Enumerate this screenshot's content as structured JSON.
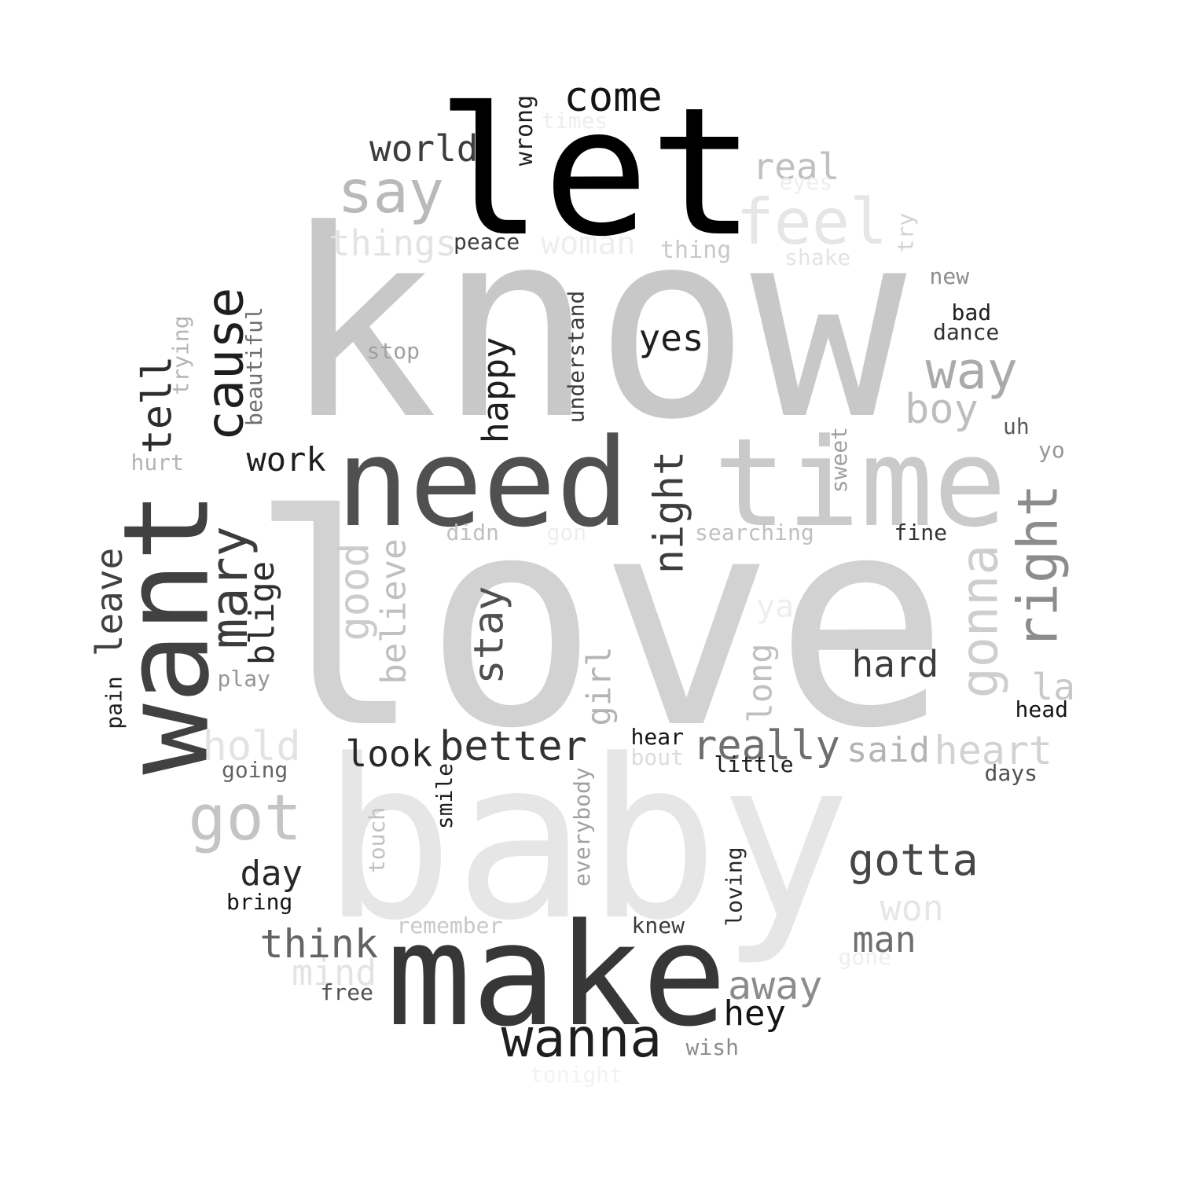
{
  "words": [
    {
      "text": "love",
      "color": "#d2d2d2",
      "rotate": false
    },
    {
      "text": "know",
      "color": "#c8c8c8",
      "rotate": false
    },
    {
      "text": "baby",
      "color": "#e6e6e6",
      "rotate": false
    },
    {
      "text": "let",
      "color": "#000000",
      "rotate": false
    },
    {
      "text": "make",
      "color": "#373737",
      "rotate": false
    },
    {
      "text": "need",
      "color": "#505050",
      "rotate": false
    },
    {
      "text": "time",
      "color": "#cacaca",
      "rotate": false
    },
    {
      "text": "want",
      "color": "#414141",
      "rotate": true
    },
    {
      "text": "say",
      "color": "#b9b9b9",
      "rotate": false
    },
    {
      "text": "feel",
      "color": "#e6e6e6",
      "rotate": false
    },
    {
      "text": "cause",
      "color": "#1e1e1e",
      "rotate": true
    },
    {
      "text": "come",
      "color": "#141414",
      "rotate": false
    },
    {
      "text": "world",
      "color": "#3c3c3c",
      "rotate": false
    },
    {
      "text": "real",
      "color": "#c0c0c0",
      "rotate": false
    },
    {
      "text": "wrong",
      "color": "#1e1e1e",
      "rotate": true
    },
    {
      "text": "times",
      "color": "#eeeeee",
      "rotate": false
    },
    {
      "text": "eyes",
      "color": "#eeeeee",
      "rotate": false
    },
    {
      "text": "things",
      "color": "#e3e3e3",
      "rotate": false
    },
    {
      "text": "peace",
      "color": "#3c3c3c",
      "rotate": false
    },
    {
      "text": "woman",
      "color": "#eeeeee",
      "rotate": false
    },
    {
      "text": "thing",
      "color": "#c8c8c8",
      "rotate": false
    },
    {
      "text": "shake",
      "color": "#e3e3e3",
      "rotate": false
    },
    {
      "text": "try",
      "color": "#d2d2d2",
      "rotate": true
    },
    {
      "text": "new",
      "color": "#8c8c8c",
      "rotate": false
    },
    {
      "text": "bad",
      "color": "#1e1e1e",
      "rotate": false
    },
    {
      "text": "dance",
      "color": "#323232",
      "rotate": false
    },
    {
      "text": "way",
      "color": "#aaaaaa",
      "rotate": false
    },
    {
      "text": "boy",
      "color": "#bebebe",
      "rotate": false
    },
    {
      "text": "yes",
      "color": "#1e1e1e",
      "rotate": false
    },
    {
      "text": "stop",
      "color": "#a0a0a0",
      "rotate": false
    },
    {
      "text": "happy",
      "color": "#1e1e1e",
      "rotate": true
    },
    {
      "text": "understand",
      "color": "#3c3c3c",
      "rotate": true
    },
    {
      "text": "trying",
      "color": "#b4b4b4",
      "rotate": true
    },
    {
      "text": "beautiful",
      "color": "#6e6e6e",
      "rotate": true
    },
    {
      "text": "tell",
      "color": "#2d2d2d",
      "rotate": true
    },
    {
      "text": "hurt",
      "color": "#b4b4b4",
      "rotate": false
    },
    {
      "text": "work",
      "color": "#1e1e1e",
      "rotate": false
    },
    {
      "text": "sweet",
      "color": "#a0a0a0",
      "rotate": true
    },
    {
      "text": "uh",
      "color": "#5a5a5a",
      "rotate": false
    },
    {
      "text": "yo",
      "color": "#969696",
      "rotate": false
    },
    {
      "text": "right",
      "color": "#8c8c8c",
      "rotate": true
    },
    {
      "text": "gonna",
      "color": "#cecece",
      "rotate": true
    },
    {
      "text": "night",
      "color": "#3c3c3c",
      "rotate": true
    },
    {
      "text": "mary",
      "color": "#3c3c3c",
      "rotate": true
    },
    {
      "text": "blige",
      "color": "#2d2d2d",
      "rotate": true
    },
    {
      "text": "leave",
      "color": "#414141",
      "rotate": true
    },
    {
      "text": "pain",
      "color": "#1e1e1e",
      "rotate": true
    },
    {
      "text": "good",
      "color": "#cccccc",
      "rotate": true
    },
    {
      "text": "believe",
      "color": "#c0c0c0",
      "rotate": true
    },
    {
      "text": "didn",
      "color": "#c0c0c0",
      "rotate": false
    },
    {
      "text": "gon",
      "color": "#eeeeee",
      "rotate": false
    },
    {
      "text": "searching",
      "color": "#c0c0c0",
      "rotate": false
    },
    {
      "text": "fine",
      "color": "#323232",
      "rotate": false
    },
    {
      "text": "stay",
      "color": "#505050",
      "rotate": true
    },
    {
      "text": "ya",
      "color": "#eeeeee",
      "rotate": false
    },
    {
      "text": "long",
      "color": "#c0c0c0",
      "rotate": true
    },
    {
      "text": "girl",
      "color": "#b4b4b4",
      "rotate": true
    },
    {
      "text": "la",
      "color": "#c8c8c8",
      "rotate": false
    },
    {
      "text": "head",
      "color": "#141414",
      "rotate": false
    },
    {
      "text": "hard",
      "color": "#3c3c3c",
      "rotate": false
    },
    {
      "text": "play",
      "color": "#969696",
      "rotate": false
    },
    {
      "text": "hold",
      "color": "#e3e3e3",
      "rotate": false
    },
    {
      "text": "going",
      "color": "#646464",
      "rotate": false
    },
    {
      "text": "look",
      "color": "#282828",
      "rotate": false
    },
    {
      "text": "better",
      "color": "#323232",
      "rotate": false
    },
    {
      "text": "hear",
      "color": "#141414",
      "rotate": false
    },
    {
      "text": "bout",
      "color": "#dcdcdc",
      "rotate": false
    },
    {
      "text": "really",
      "color": "#6e6e6e",
      "rotate": false
    },
    {
      "text": "little",
      "color": "#1e1e1e",
      "rotate": false
    },
    {
      "text": "said",
      "color": "#b4b4b4",
      "rotate": false
    },
    {
      "text": "heart",
      "color": "#d2d2d2",
      "rotate": false
    },
    {
      "text": "days",
      "color": "#505050",
      "rotate": false
    },
    {
      "text": "got",
      "color": "#c4c4c4",
      "rotate": false
    },
    {
      "text": "smile",
      "color": "#1e1e1e",
      "rotate": true
    },
    {
      "text": "touch",
      "color": "#c0c0c0",
      "rotate": true
    },
    {
      "text": "everybody",
      "color": "#a0a0a0",
      "rotate": true
    },
    {
      "text": "day",
      "color": "#282828",
      "rotate": false
    },
    {
      "text": "bring",
      "color": "#141414",
      "rotate": false
    },
    {
      "text": "gotta",
      "color": "#464646",
      "rotate": false
    },
    {
      "text": "loving",
      "color": "#282828",
      "rotate": true
    },
    {
      "text": "remember",
      "color": "#c8c8c8",
      "rotate": false
    },
    {
      "text": "knew",
      "color": "#3c3c3c",
      "rotate": false
    },
    {
      "text": "won",
      "color": "#e6e6e6",
      "rotate": false
    },
    {
      "text": "man",
      "color": "#6e6e6e",
      "rotate": false
    },
    {
      "text": "gone",
      "color": "#eeeeee",
      "rotate": false
    },
    {
      "text": "think",
      "color": "#646464",
      "rotate": false
    },
    {
      "text": "mind",
      "color": "#e3e3e3",
      "rotate": false
    },
    {
      "text": "free",
      "color": "#505050",
      "rotate": false
    },
    {
      "text": "away",
      "color": "#8c8c8c",
      "rotate": false
    },
    {
      "text": "hey",
      "color": "#141414",
      "rotate": false
    },
    {
      "text": "wanna",
      "color": "#1e1e1e",
      "rotate": false
    },
    {
      "text": "wish",
      "color": "#8c8c8c",
      "rotate": false
    },
    {
      "text": "tonight",
      "color": "#f2f2f2",
      "rotate": false
    }
  ]
}
